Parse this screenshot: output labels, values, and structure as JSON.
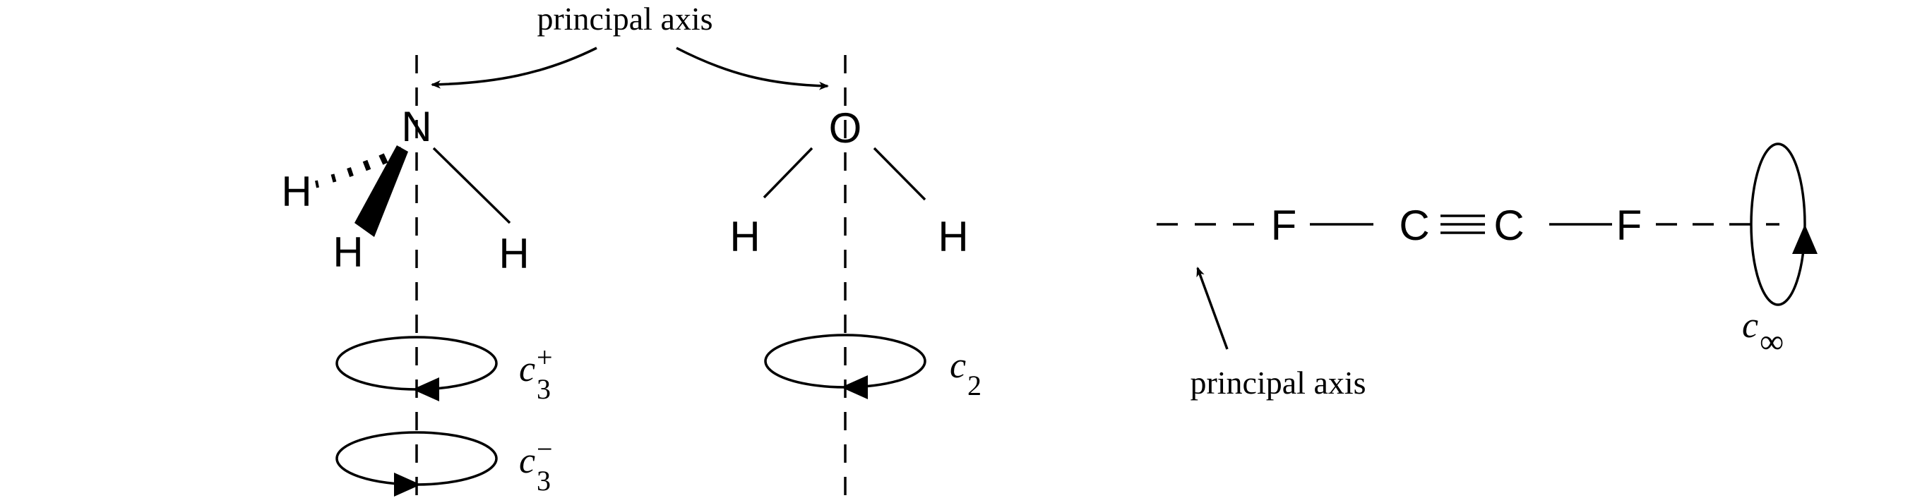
{
  "labels": {
    "principal_axis_top": "principal axis",
    "principal_axis_bottom": "principal axis"
  },
  "ammonia": {
    "center_atom": "N",
    "hydrogens": [
      "H",
      "H",
      "H"
    ],
    "c3_plus": {
      "symbol": "c",
      "subscript": "3",
      "superscript": "+"
    },
    "c3_minus": {
      "symbol": "c",
      "subscript": "3",
      "superscript": "−"
    }
  },
  "water": {
    "center_atom": "O",
    "hydrogens": [
      "H",
      "H"
    ],
    "c2": {
      "symbol": "c",
      "subscript": "2"
    }
  },
  "difluoroacetylene": {
    "atoms": [
      "F",
      "C",
      "C",
      "F"
    ],
    "triple_bond": "≡",
    "c_inf": {
      "symbol": "c",
      "subscript": "∞"
    }
  }
}
